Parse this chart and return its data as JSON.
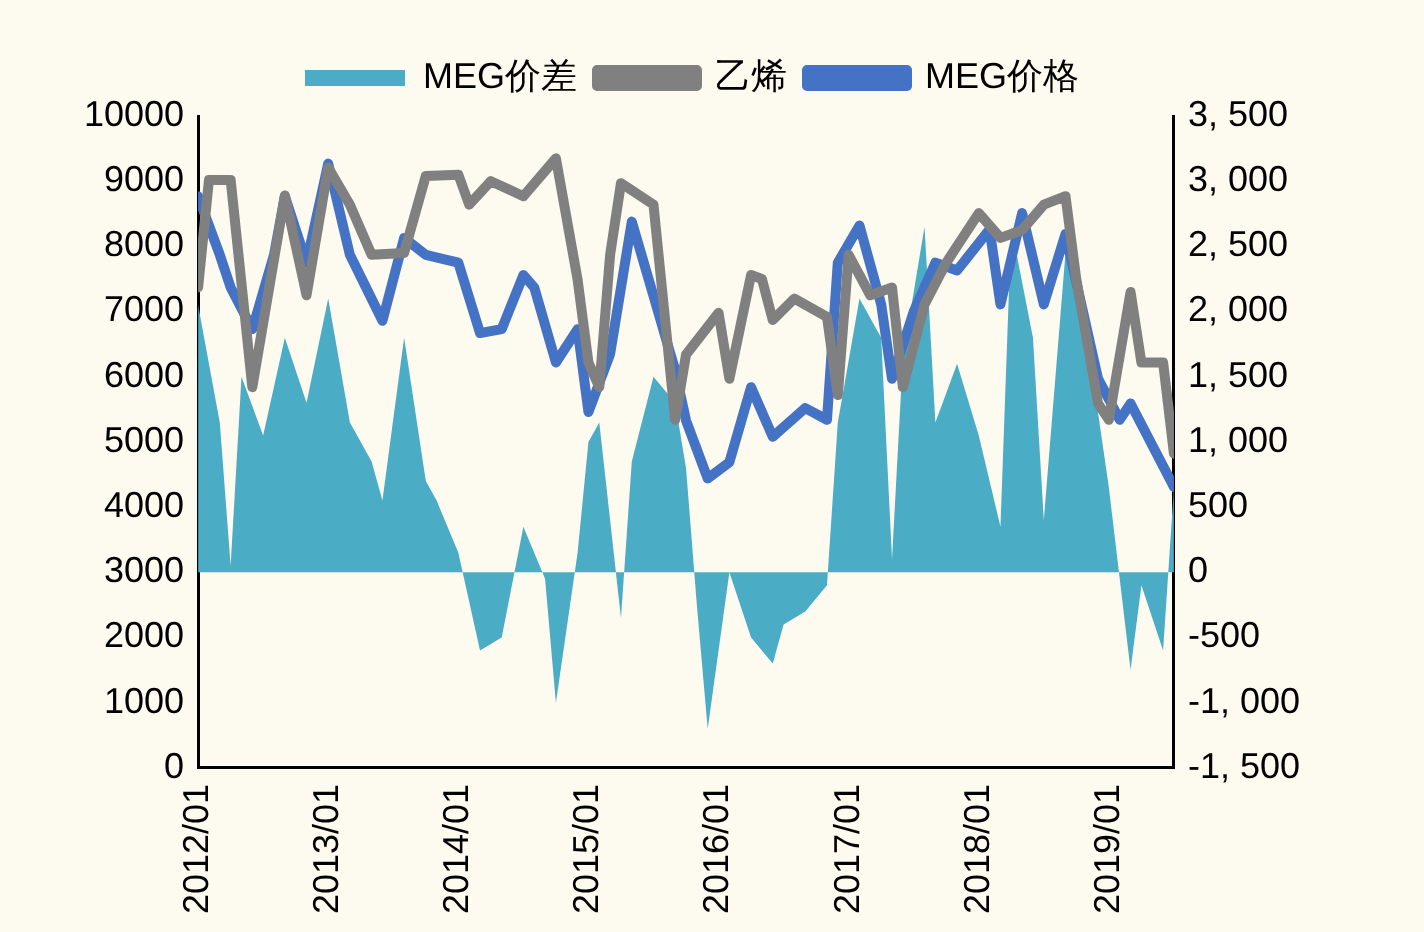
{
  "chart_data": {
    "type": "line",
    "legend": "top",
    "grid": false,
    "marker": "none",
    "line_style": "solid",
    "xlim": [
      "2012-01",
      "2019-07"
    ],
    "xticks": [
      {
        "value": "2012-01",
        "label": "2012/01"
      },
      {
        "value": "2013-01",
        "label": "2013/01"
      },
      {
        "value": "2014-01",
        "label": "2014/01"
      },
      {
        "value": "2015-01",
        "label": "2015/01"
      },
      {
        "value": "2016-01",
        "label": "2016/01"
      },
      {
        "value": "2017-01",
        "label": "2017/01"
      },
      {
        "value": "2018-01",
        "label": "2018/01"
      },
      {
        "value": "2019-01",
        "label": "2019/01"
      }
    ],
    "ylim": [
      0,
      10000
    ],
    "yticks": [
      0,
      1000,
      2000,
      3000,
      4000,
      5000,
      6000,
      7000,
      8000,
      9000,
      10000
    ],
    "y2lim": [
      -1500,
      3500
    ],
    "y2ticks": [
      {
        "value": -1500,
        "label": "-1, 500"
      },
      {
        "value": -1000,
        "label": "-1, 000"
      },
      -500,
      0,
      500,
      {
        "value": 1000,
        "label": "1, 000"
      },
      {
        "value": 1500,
        "label": "1, 500"
      },
      {
        "value": 2000,
        "label": "2, 000"
      },
      {
        "value": 2500,
        "label": "2, 500"
      },
      {
        "value": 3000,
        "label": "3, 000"
      },
      {
        "value": 3500,
        "label": "3, 500"
      }
    ],
    "series": [
      {
        "name": "MEG价差",
        "type": "area",
        "axis": "y2",
        "color": "#4bacc6",
        "x": [
          "2012-01",
          "2012-03",
          "2012-04",
          "2012-05",
          "2012-07",
          "2012-09",
          "2012-11",
          "2013-01",
          "2013-03",
          "2013-05",
          "2013-06",
          "2013-08",
          "2013-10",
          "2013-11",
          "2014-01",
          "2014-03",
          "2014-05",
          "2014-07",
          "2014-09",
          "2014-10",
          "2014-12",
          "2015-01",
          "2015-02",
          "2015-04",
          "2015-05",
          "2015-07",
          "2015-09",
          "2015-10",
          "2015-11",
          "2015-12",
          "2016-02",
          "2016-04",
          "2016-06",
          "2016-07",
          "2016-09",
          "2016-11",
          "2016-12",
          "2017-02",
          "2017-04",
          "2017-05",
          "2017-06",
          "2017-08",
          "2017-09",
          "2017-11",
          "2018-01",
          "2018-03",
          "2018-04",
          "2018-06",
          "2018-07",
          "2018-09",
          "2018-11",
          "2019-01",
          "2019-03",
          "2019-04",
          "2019-06",
          "2019-07"
        ],
        "values": [
          2050,
          1150,
          50,
          1500,
          1050,
          1800,
          1300,
          2100,
          1150,
          850,
          550,
          1800,
          700,
          550,
          150,
          -600,
          -500,
          350,
          -50,
          -1000,
          150,
          1000,
          1150,
          -350,
          850,
          1500,
          1300,
          800,
          -250,
          -1200,
          0,
          -500,
          -700,
          -400,
          -300,
          -100,
          1150,
          2100,
          1800,
          100,
          1650,
          2650,
          1150,
          1600,
          1050,
          350,
          2650,
          1800,
          400,
          2450,
          1800,
          650,
          -750,
          -100,
          -600,
          650
        ]
      },
      {
        "name": "乙烯",
        "color": "#808080",
        "x": [
          "2012-01",
          "2012-02",
          "2012-04",
          "2012-06",
          "2012-09",
          "2012-11",
          "2013-01",
          "2013-03",
          "2013-05",
          "2013-08",
          "2013-10",
          "2014-01",
          "2014-02",
          "2014-04",
          "2014-07",
          "2014-10",
          "2014-12",
          "2015-01",
          "2015-02",
          "2015-03",
          "2015-04",
          "2015-07",
          "2015-09",
          "2015-10",
          "2016-01",
          "2016-02",
          "2016-04",
          "2016-05",
          "2016-06",
          "2016-08",
          "2016-11",
          "2016-12",
          "2017-01",
          "2017-03",
          "2017-05",
          "2017-06",
          "2017-08",
          "2017-10",
          "2018-01",
          "2018-03",
          "2018-05",
          "2018-07",
          "2018-09",
          "2018-10",
          "2018-12",
          "2019-01",
          "2019-03",
          "2019-04",
          "2019-06",
          "2019-07"
        ],
        "values": [
          7370,
          9020,
          9020,
          5840,
          8780,
          7250,
          9210,
          8640,
          7870,
          7900,
          9080,
          9100,
          8640,
          9000,
          8770,
          9350,
          7490,
          6220,
          5840,
          7870,
          8970,
          8640,
          5340,
          6340,
          6980,
          5970,
          7560,
          7500,
          6870,
          7200,
          6920,
          5720,
          7870,
          7250,
          7370,
          5840,
          7110,
          7750,
          8510,
          8130,
          8250,
          8640,
          8770,
          7490,
          5590,
          5340,
          7300,
          6220,
          6220,
          4820
        ]
      },
      {
        "name": "MEG价格",
        "color": "#4472c4",
        "x": [
          "2012-01",
          "2012-03",
          "2012-04",
          "2012-06",
          "2012-08",
          "2012-09",
          "2012-11",
          "2013-01",
          "2013-03",
          "2013-06",
          "2013-08",
          "2013-10",
          "2014-01",
          "2014-03",
          "2014-05",
          "2014-07",
          "2014-08",
          "2014-10",
          "2014-12",
          "2015-01",
          "2015-03",
          "2015-05",
          "2015-07",
          "2015-09",
          "2015-10",
          "2015-12",
          "2016-02",
          "2016-04",
          "2016-06",
          "2016-09",
          "2016-11",
          "2016-12",
          "2017-02",
          "2017-04",
          "2017-05",
          "2017-07",
          "2017-09",
          "2017-11",
          "2018-02",
          "2018-03",
          "2018-05",
          "2018-07",
          "2018-09",
          "2018-12",
          "2019-02",
          "2019-03",
          "2019-05",
          "2019-07"
        ],
        "values": [
          8770,
          7870,
          7370,
          6730,
          7870,
          8770,
          7750,
          9270,
          7870,
          6860,
          8130,
          7870,
          7750,
          6670,
          6730,
          7560,
          7370,
          6220,
          6730,
          5460,
          6350,
          8380,
          7240,
          6100,
          5330,
          4440,
          4690,
          5840,
          5080,
          5520,
          5340,
          7750,
          8320,
          7110,
          5970,
          7000,
          7750,
          7630,
          8260,
          7110,
          8510,
          7110,
          8190,
          5970,
          5340,
          5590,
          4950,
          4310
        ]
      }
    ]
  }
}
